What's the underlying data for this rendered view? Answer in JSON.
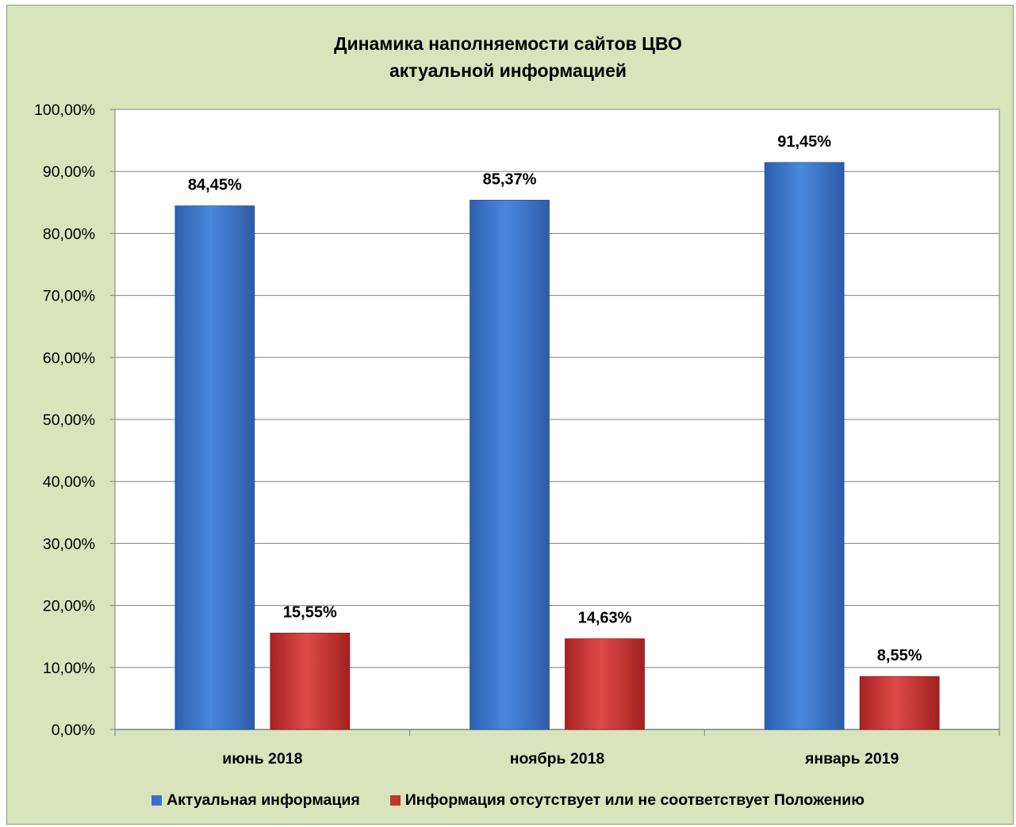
{
  "chart_data": {
    "type": "bar",
    "title": "Динамика наполняемости сайтов ЦВО",
    "subtitle": "актуальной информацией",
    "categories": [
      "июнь 2018",
      "ноябрь 2018",
      "январь 2019"
    ],
    "series": [
      {
        "name": "Актуальная информация",
        "values": [
          84.45,
          85.37,
          91.45
        ],
        "labels": [
          "84,45%",
          "85,37%",
          "91,45%"
        ],
        "color": "#3a72c8"
      },
      {
        "name": "Информация отсутствует или не соответствует Положению",
        "values": [
          15.55,
          14.63,
          8.55
        ],
        "labels": [
          "15,55%",
          "14,63%",
          "8,55%"
        ],
        "color": "#c23232"
      }
    ],
    "ylim": [
      0,
      100
    ],
    "yticks": [
      "0,00%",
      "10,00%",
      "20,00%",
      "30,00%",
      "40,00%",
      "50,00%",
      "60,00%",
      "70,00%",
      "80,00%",
      "90,00%",
      "100,00%"
    ],
    "grid": true,
    "legend_position": "bottom",
    "background": "#d9e4bd",
    "plot_background": "#ffffff"
  }
}
